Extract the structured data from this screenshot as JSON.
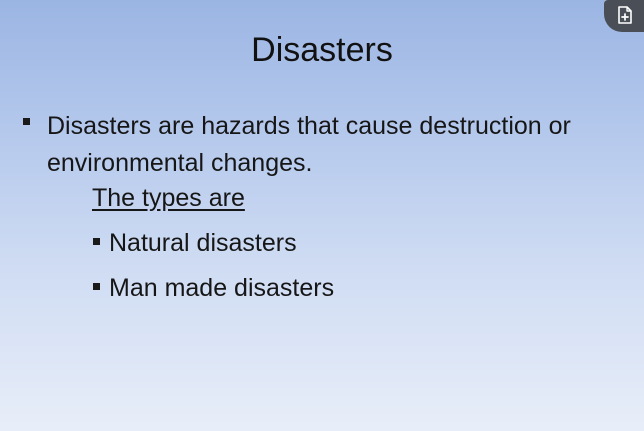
{
  "slide": {
    "title": "Disasters",
    "bullet_text": "Disasters are hazards that cause destruction or environmental changes.",
    "types_heading": "The types are",
    "sub_items": [
      "Natural disasters",
      "Man made disasters"
    ]
  },
  "overlay": {
    "icon": "add-document-icon"
  }
}
